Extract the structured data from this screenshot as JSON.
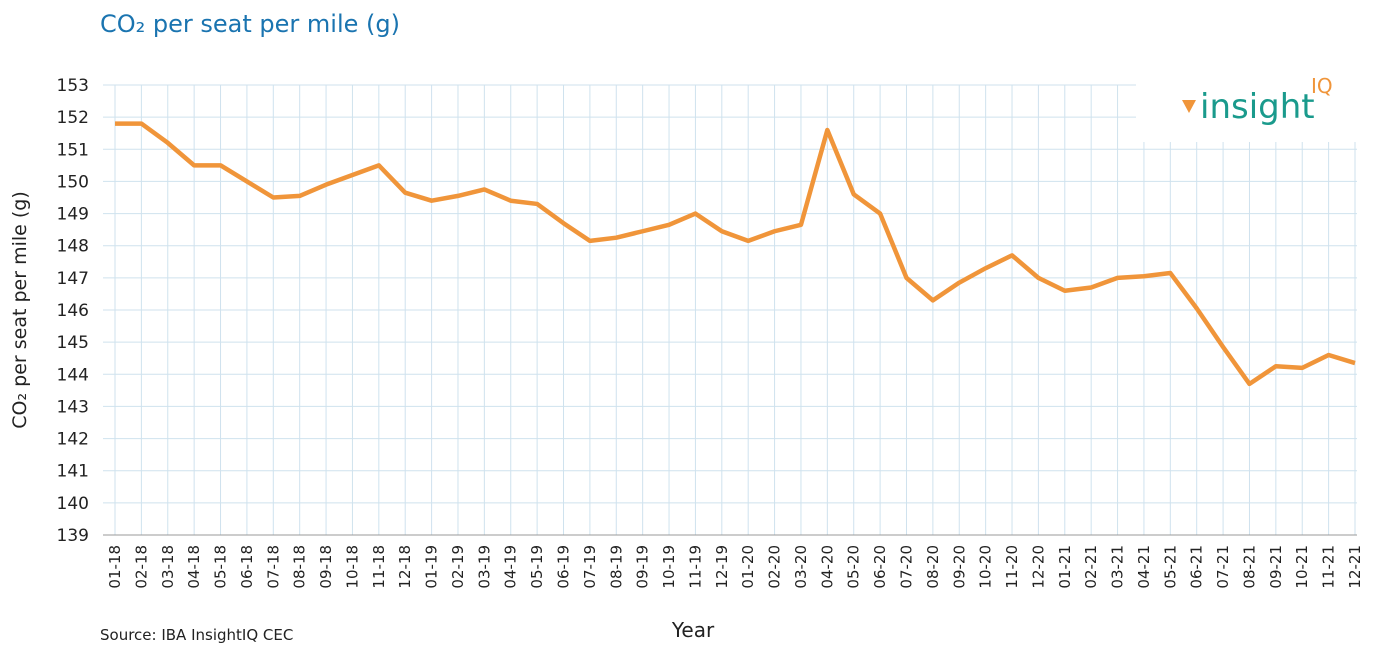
{
  "chart_data": {
    "type": "line",
    "title": "CO₂ per seat per mile (g)",
    "y_label": "CO₂ per seat per mile (g)",
    "x_label": "Year",
    "source": "Source: IBA InsightIQ CEC",
    "logo": {
      "text": "insight",
      "superscript": "IQ"
    },
    "categories": [
      "01-18",
      "02-18",
      "03-18",
      "04-18",
      "05-18",
      "06-18",
      "07-18",
      "08-18",
      "09-18",
      "10-18",
      "11-18",
      "12-18",
      "01-19",
      "02-19",
      "03-19",
      "04-19",
      "05-19",
      "06-19",
      "07-19",
      "08-19",
      "09-19",
      "10-19",
      "11-19",
      "12-19",
      "01-20",
      "02-20",
      "03-20",
      "04-20",
      "05-20",
      "06-20",
      "07-20",
      "08-20",
      "09-20",
      "10-20",
      "11-20",
      "12-20",
      "01-21",
      "02-21",
      "03-21",
      "04-21",
      "05-21",
      "06-21",
      "07-21",
      "08-21",
      "09-21",
      "10-21",
      "11-21",
      "12-21"
    ],
    "series": [
      {
        "name": "CO₂ per seat per mile (g)",
        "color": "#f0953a",
        "values": [
          151.8,
          151.8,
          151.2,
          150.5,
          150.5,
          150.0,
          149.5,
          149.55,
          149.9,
          150.2,
          150.5,
          149.65,
          149.4,
          149.55,
          149.75,
          149.4,
          149.3,
          148.7,
          148.15,
          148.25,
          148.45,
          148.65,
          149.0,
          148.45,
          148.15,
          148.45,
          148.65,
          151.6,
          149.6,
          149.0,
          147.0,
          146.3,
          146.85,
          147.3,
          147.7,
          147.0,
          146.6,
          146.7,
          147.0,
          147.05,
          147.15,
          146.05,
          144.85,
          143.7,
          144.25,
          144.2,
          144.6,
          144.35
        ]
      }
    ],
    "ylim": [
      139,
      153
    ],
    "yticks": [
      139,
      140,
      141,
      142,
      143,
      144,
      145,
      146,
      147,
      148,
      149,
      150,
      151,
      152,
      153
    ],
    "grid": true
  }
}
